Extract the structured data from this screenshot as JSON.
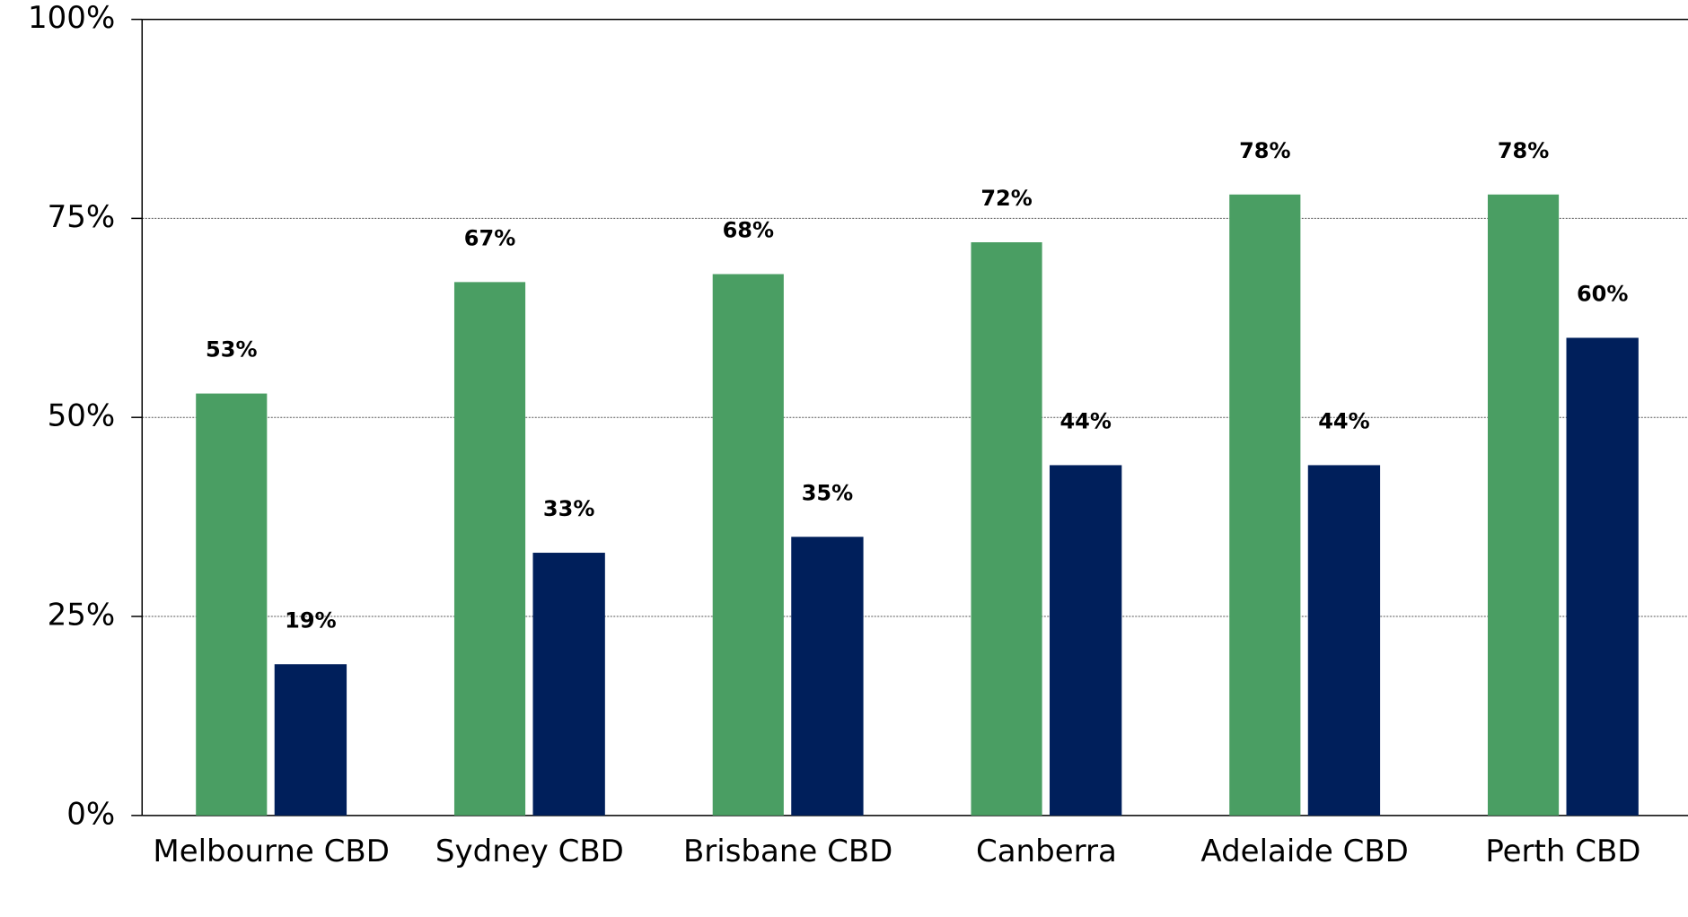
{
  "chart_data": {
    "type": "bar",
    "categories": [
      "Melbourne CBD",
      "Sydney CBD",
      "Brisbane CBD",
      "Canberra",
      "Adelaide CBD",
      "Perth CBD"
    ],
    "series": [
      {
        "color": "#4a9e63",
        "values": [
          53,
          67,
          68,
          72,
          78,
          78
        ],
        "value_labels": [
          "53%",
          "67%",
          "68%",
          "72%",
          "78%",
          "78%"
        ]
      },
      {
        "color": "#001f5b",
        "values": [
          19,
          33,
          35,
          44,
          44,
          60
        ],
        "value_labels": [
          "19%",
          "33%",
          "35%",
          "44%",
          "44%",
          "60%"
        ]
      }
    ],
    "ylim": [
      0,
      100
    ],
    "yticks": [
      {
        "value": 0,
        "label": "0%"
      },
      {
        "value": 25,
        "label": "25%"
      },
      {
        "value": 50,
        "label": "50%"
      },
      {
        "value": 75,
        "label": "75%"
      },
      {
        "value": 100,
        "label": "100%"
      }
    ],
    "grid": true
  }
}
